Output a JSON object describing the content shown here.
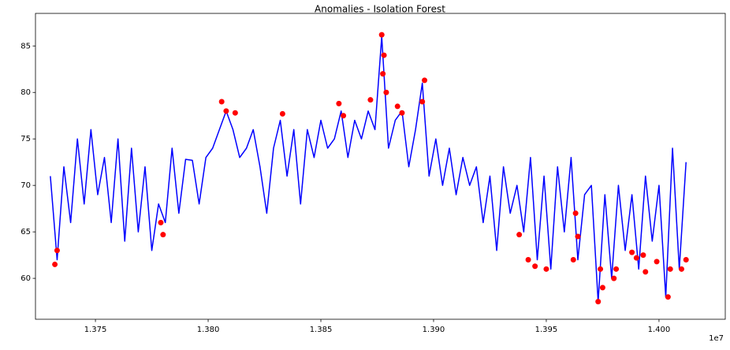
{
  "chart_data": {
    "type": "line",
    "title": "Anomalies - Isolation Forest",
    "x_offset_label": "1e7",
    "xlim": [
      13723400,
      14029400
    ],
    "ylim": [
      55.6,
      88.5
    ],
    "xticks": [
      {
        "value": 13750000,
        "label": "1.375"
      },
      {
        "value": 13800000,
        "label": "1.380"
      },
      {
        "value": 13850000,
        "label": "1.385"
      },
      {
        "value": 13900000,
        "label": "1.390"
      },
      {
        "value": 13950000,
        "label": "1.395"
      },
      {
        "value": 14000000,
        "label": "1.400"
      }
    ],
    "yticks": [
      60,
      65,
      70,
      75,
      80,
      85
    ],
    "grid": false,
    "series": [
      {
        "type": "line",
        "color": "#0000ff",
        "x": [
          13730000,
          13733000,
          13736000,
          13739000,
          13742000,
          13745000,
          13748000,
          13751000,
          13754000,
          13757000,
          13760000,
          13763000,
          13766000,
          13769000,
          13772000,
          13775000,
          13778000,
          13781000,
          13784000,
          13787000,
          13790000,
          13793000,
          13796000,
          13799000,
          13802000,
          13805000,
          13808000,
          13811000,
          13814000,
          13817000,
          13820000,
          13823000,
          13826000,
          13829000,
          13832000,
          13835000,
          13838000,
          13841000,
          13844000,
          13847000,
          13850000,
          13853000,
          13856000,
          13859000,
          13862000,
          13865000,
          13868000,
          13871000,
          13874000,
          13877000,
          13880000,
          13883000,
          13886000,
          13889000,
          13892000,
          13895000,
          13898000,
          13901000,
          13904000,
          13907000,
          13910000,
          13913000,
          13916000,
          13919000,
          13922000,
          13925000,
          13928000,
          13931000,
          13934000,
          13937000,
          13940000,
          13943000,
          13946000,
          13949000,
          13952000,
          13955000,
          13958000,
          13961000,
          13964000,
          13967000,
          13970000,
          13973000,
          13976000,
          13979000,
          13982000,
          13985000,
          13988000,
          13991000,
          13994000,
          13997000,
          14000000,
          14003000,
          14006000,
          14009000,
          14012000
        ],
        "values": [
          71,
          62,
          72,
          66,
          75,
          68,
          76,
          69,
          73,
          66,
          75,
          64,
          74,
          65,
          72,
          63,
          68,
          66,
          74,
          67,
          72.8,
          72.7,
          68,
          73,
          74,
          76,
          78,
          76,
          73,
          74,
          76,
          72,
          67,
          74,
          77,
          71,
          76,
          68,
          76,
          73,
          77,
          74,
          75,
          78,
          73,
          77,
          75,
          78,
          76,
          86,
          74,
          77,
          78,
          72,
          76,
          81,
          71,
          75,
          70,
          74,
          69,
          73,
          70,
          72,
          66,
          71,
          63,
          72,
          67,
          70,
          65,
          73,
          62,
          71,
          61,
          72,
          65,
          73,
          62,
          69,
          70,
          57.5,
          69,
          60,
          70,
          63,
          69,
          61,
          71,
          64,
          70,
          58,
          74,
          61,
          72.5
        ]
      },
      {
        "type": "scatter",
        "color": "#ff0000",
        "x": [
          13732000,
          13733000,
          13779000,
          13780000,
          13806000,
          13808000,
          13812000,
          13833000,
          13858000,
          13860000,
          13872000,
          13877000,
          13877500,
          13878000,
          13879000,
          13884000,
          13886000,
          13895000,
          13896000,
          13938000,
          13942000,
          13945000,
          13950000,
          13962000,
          13963000,
          13964000,
          13973000,
          13974000,
          13975000,
          13980000,
          13981000,
          13988000,
          13990000,
          13993000,
          13994000,
          13999000,
          14004000,
          14005000,
          14010000,
          14012000
        ],
        "values": [
          61.5,
          63,
          66,
          64.7,
          79,
          78,
          77.8,
          77.7,
          78.8,
          77.5,
          79.2,
          86.2,
          82,
          84,
          80,
          78.5,
          77.8,
          79,
          81.3,
          64.7,
          62,
          61.3,
          61,
          62,
          67,
          64.5,
          57.5,
          61,
          59,
          60,
          61,
          62.8,
          62.2,
          62.5,
          60.7,
          61.8,
          58,
          61,
          61,
          62
        ]
      }
    ]
  }
}
